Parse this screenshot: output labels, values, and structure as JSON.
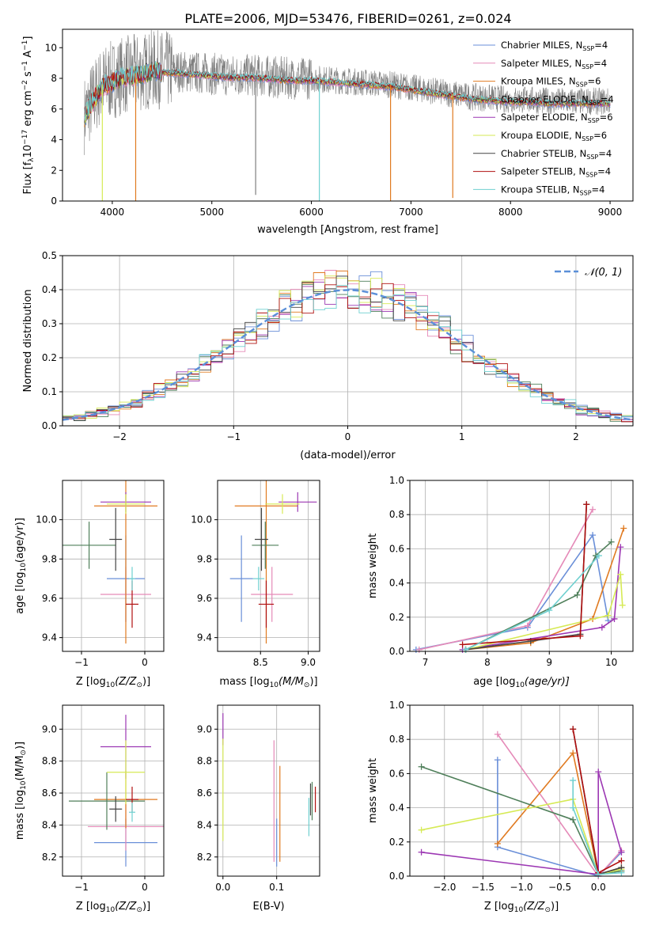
{
  "figure_title": "PLATE=2006, MJD=53476, FIBERID=0261, z=0.024",
  "colors": {
    "chabrier_miles": "#6a8fd8",
    "salpeter_miles": "#e58ab8",
    "kroupa_miles": "#e07a20",
    "chabrier_elodie": "#4f7f5a",
    "salpeter_elodie": "#9c37b3",
    "kroupa_elodie": "#d6ea55",
    "chabrier_stelib": "#444444",
    "salpeter_stelib": "#b01010",
    "kroupa_stelib": "#6fd0d0",
    "data_grey": "#7f7f7f",
    "gauss": "#5b8fd8"
  },
  "chart_data": [
    {
      "type": "line",
      "id": "spectrum",
      "xlabel": "wavelength [Angstrom, rest frame]",
      "ylabel": "Flux [f",
      "ylabel_parts": [
        "Flux [f",
        "λ",
        "10",
        "−17",
        " erg cm",
        "−2",
        " s",
        "−1",
        " A",
        "−1",
        "]"
      ],
      "xlim": [
        3500,
        9230
      ],
      "ylim": [
        0,
        11.2
      ],
      "xticks": [
        4000,
        5000,
        6000,
        7000,
        8000,
        9000
      ],
      "xtick_labels": [
        "4000",
        "5000",
        "6000",
        "7000",
        "8000",
        "9000"
      ],
      "yticks": [
        0,
        2,
        4,
        6,
        8,
        10
      ],
      "ytick_labels": [
        "0",
        "2",
        "4",
        "6",
        "8",
        "10"
      ],
      "grid": false,
      "legend_position": "top-right",
      "continuum": {
        "x": [
          3720,
          3800,
          3900,
          4000,
          4100,
          4200,
          4300,
          4400,
          4600,
          4800,
          5000,
          5200,
          5400,
          5600,
          5800,
          6000,
          6200,
          6400,
          6600,
          6800,
          7000,
          7200,
          7400,
          7600,
          7800,
          8000,
          8200,
          8400,
          8600,
          8800,
          9000
        ],
        "y": [
          5.6,
          6.6,
          7.6,
          7.9,
          8.2,
          8.3,
          8.4,
          8.6,
          8.5,
          8.4,
          8.3,
          8.2,
          8.2,
          8.1,
          8.0,
          8.0,
          7.9,
          7.8,
          7.7,
          7.6,
          7.4,
          7.2,
          7.0,
          6.8,
          6.7,
          6.6,
          6.6,
          6.5,
          6.5,
          6.5,
          6.5
        ]
      },
      "series": [
        {
          "name": "Chabrier MILES, N",
          "sub": "SSP",
          "suffix": "=4",
          "color_key": "chabrier_miles"
        },
        {
          "name": "Salpeter MILES, N",
          "sub": "SSP",
          "suffix": "=4",
          "color_key": "salpeter_miles"
        },
        {
          "name": "Kroupa MILES, N",
          "sub": "SSP",
          "suffix": "=6",
          "color_key": "kroupa_miles"
        },
        {
          "name": "Chabrier ELODIE, N",
          "sub": "SSP",
          "suffix": "=4",
          "color_key": "chabrier_elodie"
        },
        {
          "name": "Salpeter ELODIE, N",
          "sub": "SSP",
          "suffix": "=6",
          "color_key": "salpeter_elodie"
        },
        {
          "name": "Kroupa ELODIE, N",
          "sub": "SSP",
          "suffix": "=6",
          "color_key": "kroupa_elodie"
        },
        {
          "name": "Chabrier STELIB, N",
          "sub": "SSP",
          "suffix": "=4",
          "color_key": "chabrier_stelib"
        },
        {
          "name": "Salpeter STELIB, N",
          "sub": "SSP",
          "suffix": "=4",
          "color_key": "salpeter_stelib"
        },
        {
          "name": "Kroupa STELIB, N",
          "sub": "SSP",
          "suffix": "=4",
          "color_key": "kroupa_stelib"
        }
      ],
      "drops": [
        {
          "x": 3900,
          "color_key": "kroupa_elodie",
          "y": 0
        },
        {
          "x": 4235,
          "color_key": "kroupa_miles",
          "y": 0
        },
        {
          "x": 6080,
          "color_key": "kroupa_stelib",
          "y": 0
        },
        {
          "x": 6795,
          "color_key": "kroupa_miles",
          "y": 0
        },
        {
          "x": 7420,
          "color_key": "kroupa_miles",
          "y": 0.2
        },
        {
          "x": 5440,
          "color_key": "data_grey",
          "y": 0.4
        }
      ]
    },
    {
      "type": "line",
      "id": "residuals",
      "xlabel": "(data-model)/error",
      "ylabel": "Normed distribution",
      "xlim": [
        -2.5,
        2.5
      ],
      "ylim": [
        0,
        0.5
      ],
      "xticks": [
        -2,
        -1,
        0,
        1,
        2
      ],
      "xtick_labels": [
        "−2",
        "−1",
        "0",
        "1",
        "2"
      ],
      "yticks": [
        0,
        0.1,
        0.2,
        0.3,
        0.4,
        0.5
      ],
      "ytick_labels": [
        "0.0",
        "0.1",
        "0.2",
        "0.3",
        "0.4",
        "0.5"
      ],
      "grid": true,
      "legend_position": "top-right",
      "legend_label": "𝒩(0, 1)",
      "bin_width": 0.1,
      "bin_start": -2.5,
      "gaussian": {
        "mean": 0,
        "sigma": 1
      }
    },
    {
      "type": "scatter",
      "id": "age_vs_Z",
      "xlabel": "Z [log",
      "xlabel_parts": [
        "Z [log",
        "10",
        "(Z/Z",
        "⊙",
        ")]"
      ],
      "ylabel_parts": [
        "age  [log",
        "10",
        "(age/yr)]"
      ],
      "xlim": [
        -1.3,
        0.3
      ],
      "ylim": [
        9.33,
        10.2
      ],
      "xticks": [
        -1,
        0
      ],
      "xtick_labels": [
        "−1",
        "0"
      ],
      "yticks": [
        9.4,
        9.6,
        9.8,
        10.0
      ],
      "ytick_labels": [
        "9.4",
        "9.6",
        "9.8",
        "10.0"
      ],
      "grid": true,
      "points": [
        {
          "color_key": "chabrier_miles",
          "x": -0.3,
          "xerr": 0.3,
          "y": 9.7,
          "yerr": 0.22
        },
        {
          "color_key": "salpeter_miles",
          "x": -0.3,
          "xerr": 0.4,
          "y": 9.62,
          "yerr": 0.14
        },
        {
          "color_key": "kroupa_miles",
          "x": -0.3,
          "xerr": 0.5,
          "y": 10.07,
          "yerr": 0.7
        },
        {
          "color_key": "chabrier_elodie",
          "x": -0.88,
          "xerr": 0.42,
          "y": 9.87,
          "yerr": 0.12
        },
        {
          "color_key": "salpeter_elodie",
          "x": -0.3,
          "xerr": 0.4,
          "y": 10.09,
          "yerr": 0.05
        },
        {
          "color_key": "kroupa_elodie",
          "x": -0.3,
          "xerr": 0.3,
          "y": 10.08,
          "yerr": 0.05
        },
        {
          "color_key": "chabrier_stelib",
          "x": -0.46,
          "xerr": 0.1,
          "y": 9.9,
          "yerr": 0.16
        },
        {
          "color_key": "salpeter_stelib",
          "x": -0.2,
          "xerr": 0.1,
          "y": 9.57,
          "yerr": 0.12
        },
        {
          "color_key": "kroupa_stelib",
          "x": -0.2,
          "xerr": 0.05,
          "y": 9.7,
          "yerr": 0.06
        }
      ]
    },
    {
      "type": "scatter",
      "id": "age_vs_mass",
      "xlabel_parts": [
        "mass [log",
        "10",
        "(M/M",
        "⊙",
        ")]"
      ],
      "xlim": [
        8.05,
        9.12
      ],
      "ylim": [
        9.33,
        10.2
      ],
      "xticks": [
        8.5,
        9.0
      ],
      "xtick_labels": [
        "8.5",
        "9.0"
      ],
      "yticks": [
        9.4,
        9.6,
        9.8,
        10.0
      ],
      "ytick_labels": [
        "9.4",
        "9.6",
        "9.8",
        "10.0"
      ],
      "grid": true,
      "points": [
        {
          "color_key": "chabrier_miles",
          "x": 8.3,
          "xerr": 0.12,
          "y": 9.7,
          "yerr": 0.22
        },
        {
          "color_key": "salpeter_miles",
          "x": 8.62,
          "xerr": 0.22,
          "y": 9.62,
          "yerr": 0.14
        },
        {
          "color_key": "kroupa_miles",
          "x": 8.56,
          "xerr": 0.33,
          "y": 10.07,
          "yerr": 0.7
        },
        {
          "color_key": "chabrier_elodie",
          "x": 8.55,
          "xerr": 0.14,
          "y": 9.87,
          "yerr": 0.12
        },
        {
          "color_key": "salpeter_elodie",
          "x": 8.89,
          "xerr": 0.2,
          "y": 10.09,
          "yerr": 0.05
        },
        {
          "color_key": "kroupa_elodie",
          "x": 8.73,
          "xerr": 0.18,
          "y": 10.08,
          "yerr": 0.05
        },
        {
          "color_key": "chabrier_stelib",
          "x": 8.51,
          "xerr": 0.07,
          "y": 9.9,
          "yerr": 0.16
        },
        {
          "color_key": "salpeter_stelib",
          "x": 8.56,
          "xerr": 0.08,
          "y": 9.57,
          "yerr": 0.12
        },
        {
          "color_key": "kroupa_stelib",
          "x": 8.48,
          "xerr": 0.06,
          "y": 9.7,
          "yerr": 0.06
        }
      ]
    },
    {
      "type": "line",
      "id": "weight_vs_age",
      "xlabel_parts": [
        "age  [log",
        "10",
        "(age/yr)]"
      ],
      "ylabel": "mass weight",
      "xlim": [
        6.75,
        10.35
      ],
      "ylim": [
        0,
        1.0
      ],
      "xticks": [
        7,
        8,
        9,
        10
      ],
      "xtick_labels": [
        "7",
        "8",
        "9",
        "10"
      ],
      "yticks": [
        0,
        0.2,
        0.4,
        0.6,
        0.8,
        1.0
      ],
      "ytick_labels": [
        "0.0",
        "0.2",
        "0.4",
        "0.6",
        "0.8",
        "1.0"
      ],
      "grid": true,
      "series": [
        {
          "color_key": "chabrier_miles",
          "x": [
            6.85,
            8.65,
            9.7,
            9.95
          ],
          "y": [
            0.01,
            0.14,
            0.68,
            0.18
          ]
        },
        {
          "color_key": "salpeter_miles",
          "x": [
            6.9,
            8.65,
            9.7
          ],
          "y": [
            0.01,
            0.15,
            0.83
          ]
        },
        {
          "color_key": "kroupa_miles",
          "x": [
            7.65,
            8.7,
            9.7,
            10.2
          ],
          "y": [
            0.01,
            0.05,
            0.19,
            0.72
          ]
        },
        {
          "color_key": "chabrier_elodie",
          "x": [
            7.65,
            9.45,
            9.75,
            10.0
          ],
          "y": [
            0.01,
            0.33,
            0.56,
            0.64
          ]
        },
        {
          "color_key": "salpeter_elodie",
          "x": [
            7.6,
            9.85,
            10.05,
            10.15
          ],
          "y": [
            0.01,
            0.14,
            0.19,
            0.61
          ]
        },
        {
          "color_key": "kroupa_elodie",
          "x": [
            7.65,
            9.95,
            10.15,
            10.18
          ],
          "y": [
            0.01,
            0.21,
            0.45,
            0.27
          ]
        },
        {
          "color_key": "chabrier_stelib",
          "x": [
            7.65,
            8.7,
            9.5,
            9.6
          ],
          "y": [
            0.01,
            0.06,
            0.1,
            0.86
          ]
        },
        {
          "color_key": "salpeter_stelib",
          "x": [
            7.6,
            9.5,
            9.6
          ],
          "y": [
            0.04,
            0.09,
            0.86
          ]
        },
        {
          "color_key": "kroupa_stelib",
          "x": [
            7.65,
            9.0,
            9.8
          ],
          "y": [
            0.01,
            0.24,
            0.56
          ]
        }
      ]
    },
    {
      "type": "scatter",
      "id": "mass_vs_Z",
      "xlabel_parts": [
        "Z [log",
        "10",
        "(Z/Z",
        "⊙",
        ")]"
      ],
      "ylabel_parts": [
        "mass [log",
        "10",
        "(M/M",
        "⊙",
        ")]"
      ],
      "xlim": [
        -1.3,
        0.3
      ],
      "ylim": [
        8.08,
        9.15
      ],
      "xticks": [
        -1,
        0
      ],
      "xtick_labels": [
        "−1",
        "0"
      ],
      "yticks": [
        8.2,
        8.4,
        8.6,
        8.8,
        9.0
      ],
      "ytick_labels": [
        "8.2",
        "8.4",
        "8.6",
        "8.8",
        "9.0"
      ],
      "grid": true,
      "points": [
        {
          "color_key": "chabrier_miles",
          "x": -0.3,
          "xerr": 0.5,
          "y": 8.29,
          "yerr": 0.15
        },
        {
          "color_key": "salpeter_miles",
          "x": -0.3,
          "xerr": 0.6,
          "y": 8.39,
          "yerr": 0.15
        },
        {
          "color_key": "kroupa_miles",
          "x": -0.3,
          "xerr": 0.5,
          "y": 8.56,
          "yerr": 0.18
        },
        {
          "color_key": "chabrier_elodie",
          "x": -0.6,
          "xerr": 0.6,
          "y": 8.55,
          "yerr": 0.18
        },
        {
          "color_key": "salpeter_elodie",
          "x": -0.3,
          "xerr": 0.4,
          "y": 8.89,
          "yerr": 0.2
        },
        {
          "color_key": "kroupa_elodie",
          "x": -0.3,
          "xerr": 0.3,
          "y": 8.73,
          "yerr": 0.2
        },
        {
          "color_key": "chabrier_stelib",
          "x": -0.46,
          "xerr": 0.1,
          "y": 8.5,
          "yerr": 0.08
        },
        {
          "color_key": "salpeter_stelib",
          "x": -0.2,
          "xerr": 0.1,
          "y": 8.56,
          "yerr": 0.08
        },
        {
          "color_key": "kroupa_stelib",
          "x": -0.2,
          "xerr": 0.05,
          "y": 8.48,
          "yerr": 0.06
        }
      ]
    },
    {
      "type": "scatter",
      "id": "mass_vs_ebv",
      "xlabel": "E(B-V)",
      "xlim": [
        -0.01,
        0.18
      ],
      "ylim": [
        8.08,
        9.15
      ],
      "xticks": [
        0.0,
        0.1
      ],
      "xtick_labels": [
        "0.0",
        "0.1"
      ],
      "yticks": [
        8.2,
        8.4,
        8.6,
        8.8,
        9.0
      ],
      "ytick_labels": [
        "8.2",
        "8.4",
        "8.6",
        "8.8",
        "9.0"
      ],
      "grid": true,
      "points": [
        {
          "color_key": "chabrier_miles",
          "x": 0.1,
          "xerr": 0,
          "y": 8.29,
          "yerr": 0.15
        },
        {
          "color_key": "salpeter_miles",
          "x": 0.095,
          "xerr": 0,
          "y": 8.55,
          "yerr": 0.38
        },
        {
          "color_key": "kroupa_miles",
          "x": 0.106,
          "xerr": 0,
          "y": 8.47,
          "yerr": 0.3
        },
        {
          "color_key": "chabrier_elodie",
          "x": 0.166,
          "xerr": 0,
          "y": 8.55,
          "yerr": 0.12
        },
        {
          "color_key": "salpeter_elodie",
          "x": 0.0,
          "xerr": 0,
          "y": 9.0,
          "yerr": 0.1
        },
        {
          "color_key": "kroupa_elodie",
          "x": 0.0,
          "xerr": 0,
          "y": 8.62,
          "yerr": 0.32
        },
        {
          "color_key": "chabrier_stelib",
          "x": 0.163,
          "xerr": 0,
          "y": 8.56,
          "yerr": 0.1
        },
        {
          "color_key": "salpeter_stelib",
          "x": 0.172,
          "xerr": 0,
          "y": 8.56,
          "yerr": 0.08
        },
        {
          "color_key": "kroupa_stelib",
          "x": 0.16,
          "xerr": 0,
          "y": 8.45,
          "yerr": 0.12
        }
      ]
    },
    {
      "type": "line",
      "id": "weight_vs_Z",
      "xlabel_parts": [
        "Z [log",
        "10",
        "(Z/Z",
        "⊙",
        ")]"
      ],
      "ylabel": "mass weight",
      "xlim": [
        -2.45,
        0.45
      ],
      "ylim": [
        0,
        1.0
      ],
      "xticks": [
        -2.0,
        -1.5,
        -1.0,
        -0.5,
        0.0
      ],
      "xtick_labels": [
        "−2.0",
        "−1.5",
        "−1.0",
        "−0.5",
        "0.0"
      ],
      "yticks": [
        0,
        0.2,
        0.4,
        0.6,
        0.8,
        1.0
      ],
      "ytick_labels": [
        "0.0",
        "0.2",
        "0.4",
        "0.6",
        "0.8",
        "1.0"
      ],
      "grid": true,
      "series": [
        {
          "color_key": "chabrier_miles",
          "x": [
            -1.31,
            -1.31,
            0.0,
            0.3
          ],
          "y": [
            0.68,
            0.17,
            0.0,
            0.14
          ]
        },
        {
          "color_key": "salpeter_miles",
          "x": [
            -1.31,
            0.0,
            0.3
          ],
          "y": [
            0.83,
            0.0,
            0.15
          ]
        },
        {
          "color_key": "kroupa_miles",
          "x": [
            -1.31,
            -0.33,
            0.0,
            0.3
          ],
          "y": [
            0.19,
            0.72,
            0.01,
            0.05
          ]
        },
        {
          "color_key": "chabrier_elodie",
          "x": [
            -2.3,
            -0.33,
            0.0,
            0.3
          ],
          "y": [
            0.64,
            0.33,
            0.01,
            0.03
          ]
        },
        {
          "color_key": "salpeter_elodie",
          "x": [
            -2.3,
            0.0,
            0.0,
            0.3
          ],
          "y": [
            0.14,
            0.01,
            0.61,
            0.14
          ]
        },
        {
          "color_key": "kroupa_elodie",
          "x": [
            -2.3,
            -0.33,
            0.0,
            0.3
          ],
          "y": [
            0.27,
            0.45,
            0.01,
            0.04
          ]
        },
        {
          "color_key": "chabrier_stelib",
          "x": [
            -0.33,
            0.0,
            0.3
          ],
          "y": [
            0.86,
            0.01,
            0.05
          ]
        },
        {
          "color_key": "salpeter_stelib",
          "x": [
            -0.33,
            0.0,
            0.3
          ],
          "y": [
            0.86,
            0.02,
            0.09
          ]
        },
        {
          "color_key": "kroupa_stelib",
          "x": [
            -0.33,
            -0.33,
            0.0,
            0.3
          ],
          "y": [
            0.56,
            0.4,
            0.01,
            0.02
          ]
        }
      ]
    }
  ]
}
